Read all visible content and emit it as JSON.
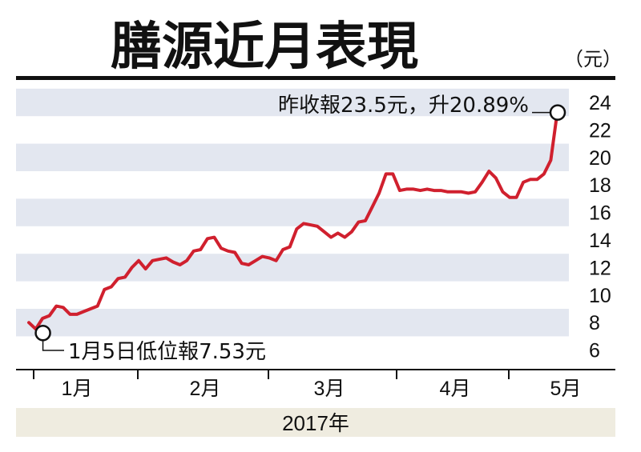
{
  "title": "膳源近月表現",
  "unit": "（元）",
  "year_label": "2017年",
  "colors": {
    "line": "#d0202e",
    "band": "#e3e7f0",
    "year_bar": "#efece0",
    "axis": "#111111"
  },
  "annotations": {
    "high": "昨收報23.5元，升20.89%",
    "low": "1月5日低位報7.53元"
  },
  "chart_data": {
    "type": "line",
    "title": "膳源近月表現",
    "ylabel": "（元）",
    "xlabel": "2017年",
    "ylim": [
      5,
      25
    ],
    "yticks": [
      6,
      8,
      10,
      12,
      14,
      16,
      18,
      20,
      22,
      24
    ],
    "months": [
      "1月",
      "2月",
      "3月",
      "4月",
      "5月"
    ],
    "series": [
      {
        "values": [
          8.0,
          7.53,
          8.3,
          8.5,
          9.2,
          9.1,
          8.6,
          8.6,
          8.8,
          9.0,
          9.2,
          10.4,
          10.6,
          11.2,
          11.3,
          12.0,
          12.5,
          11.9,
          12.5,
          12.6,
          12.7,
          12.4,
          12.2,
          12.5,
          13.2,
          13.3,
          14.1,
          14.2,
          13.4,
          13.2,
          13.1,
          12.3,
          12.2,
          12.5,
          12.8,
          12.7,
          12.5,
          13.3,
          13.5,
          14.8,
          15.2,
          15.1,
          15.0,
          14.6,
          14.2,
          14.5,
          14.2,
          14.6,
          15.3,
          15.4,
          16.4,
          17.4,
          18.8,
          18.8,
          17.6,
          17.7,
          17.7,
          17.6,
          17.7,
          17.6,
          17.6,
          17.5,
          17.5,
          17.5,
          17.4,
          17.5,
          18.2,
          19.0,
          18.5,
          17.5,
          17.1,
          17.1,
          18.2,
          18.4,
          18.4,
          18.8,
          19.8,
          23.5
        ]
      }
    ]
  }
}
